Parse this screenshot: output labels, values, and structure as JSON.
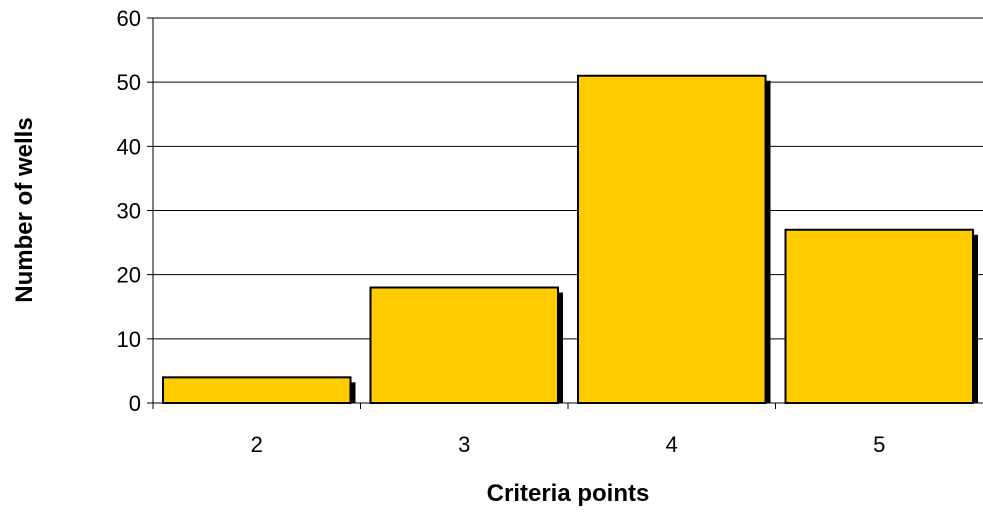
{
  "chart_data": {
    "type": "bar",
    "title": "",
    "xlabel": "Criteria points",
    "ylabel": "Number of wells",
    "categories": [
      "2",
      "3",
      "4",
      "5"
    ],
    "values": [
      4,
      18,
      51,
      27
    ],
    "ylim": [
      0,
      60
    ],
    "yticks": [
      "0",
      "10",
      "20",
      "30",
      "40",
      "50",
      "60"
    ],
    "grid": true,
    "legend": "none",
    "colors": {
      "bar_fill": "#FFCC00",
      "bar_stroke": "#000000",
      "bar_shadow": "#000000",
      "gridline": "#000000"
    }
  }
}
